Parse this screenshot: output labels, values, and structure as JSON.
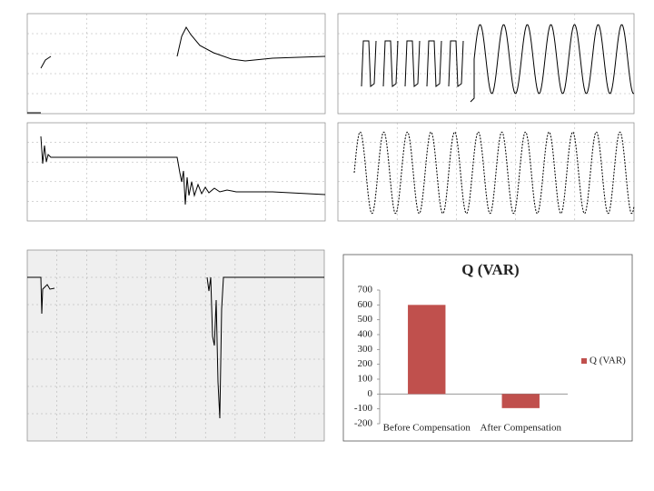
{
  "chart_data": {
    "type": "bar",
    "title": "Q (VAR)",
    "categories": [
      "Before Compensation",
      "After Compensation"
    ],
    "series": [
      {
        "name": "Q (VAR)",
        "color": "#c0504d",
        "values": [
          600,
          -95
        ]
      }
    ],
    "ylim": [
      -200,
      700
    ],
    "yticks": [
      -200,
      -100,
      0,
      100,
      200,
      300,
      400,
      500,
      600,
      700
    ],
    "legend": "right"
  }
}
